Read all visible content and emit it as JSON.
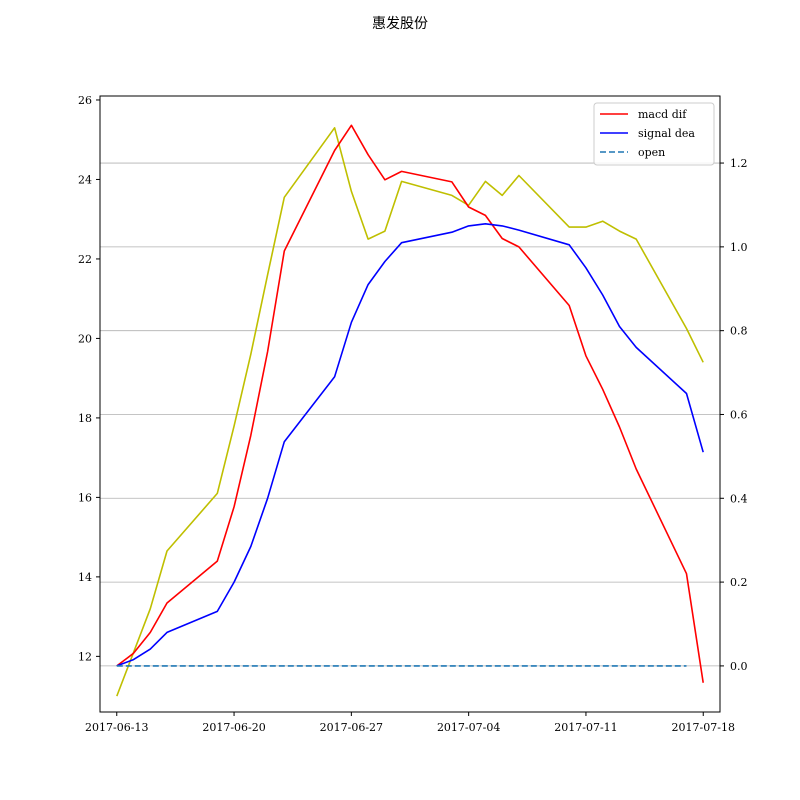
{
  "chart_data": {
    "type": "line",
    "title": "惠发股份",
    "x_ticks": [
      "2017-06-13",
      "2017-06-20",
      "2017-06-27",
      "2017-07-04",
      "2017-07-11",
      "2017-07-18"
    ],
    "x_range": [
      "2017-06-12",
      "2017-07-19"
    ],
    "left_y_range": [
      10.6,
      26.1
    ],
    "left_y_ticks": [
      "12",
      "14",
      "16",
      "18",
      "20",
      "22",
      "24",
      "26"
    ],
    "right_y_range": [
      -0.11,
      1.36
    ],
    "right_y_ticks": [
      "0.0",
      "0.2",
      "0.4",
      "0.6",
      "0.8",
      "1.0",
      "1.2"
    ],
    "grid": "horizontal gridlines on right axis",
    "legend_position": "upper-right",
    "price_series": {
      "axis": "left",
      "color": "#bfbf00",
      "points": [
        [
          "2017-06-13",
          11.0
        ],
        [
          "2017-06-15",
          13.2
        ],
        [
          "2017-06-16",
          14.65
        ],
        [
          "2017-06-19",
          16.1
        ],
        [
          "2017-06-20",
          17.8
        ],
        [
          "2017-06-21",
          19.6
        ],
        [
          "2017-06-22",
          21.6
        ],
        [
          "2017-06-23",
          23.55
        ],
        [
          "2017-06-26",
          25.3
        ],
        [
          "2017-06-27",
          23.7
        ],
        [
          "2017-06-28",
          22.5
        ],
        [
          "2017-06-29",
          22.7
        ],
        [
          "2017-06-30",
          23.95
        ],
        [
          "2017-07-03",
          23.6
        ],
        [
          "2017-07-04",
          23.35
        ],
        [
          "2017-07-05",
          23.95
        ],
        [
          "2017-07-06",
          23.6
        ],
        [
          "2017-07-07",
          24.1
        ],
        [
          "2017-07-10",
          22.8
        ],
        [
          "2017-07-11",
          22.8
        ],
        [
          "2017-07-12",
          22.95
        ],
        [
          "2017-07-13",
          22.7
        ],
        [
          "2017-07-14",
          22.5
        ],
        [
          "2017-07-17",
          20.25
        ],
        [
          "2017-07-18",
          19.4
        ]
      ]
    },
    "series": [
      {
        "name": "macd dif",
        "axis": "right",
        "color": "#ff0000",
        "dash": "solid",
        "points": [
          [
            "2017-06-13",
            0.0
          ],
          [
            "2017-06-14",
            0.03
          ],
          [
            "2017-06-15",
            0.08
          ],
          [
            "2017-06-16",
            0.15
          ],
          [
            "2017-06-19",
            0.25
          ],
          [
            "2017-06-20",
            0.38
          ],
          [
            "2017-06-21",
            0.55
          ],
          [
            "2017-06-22",
            0.75
          ],
          [
            "2017-06-23",
            0.99
          ],
          [
            "2017-06-26",
            1.23
          ],
          [
            "2017-06-27",
            1.29
          ],
          [
            "2017-06-28",
            1.22
          ],
          [
            "2017-06-29",
            1.16
          ],
          [
            "2017-06-30",
            1.18
          ],
          [
            "2017-07-03",
            1.155
          ],
          [
            "2017-07-04",
            1.095
          ],
          [
            "2017-07-05",
            1.075
          ],
          [
            "2017-07-06",
            1.02
          ],
          [
            "2017-07-07",
            1.0
          ],
          [
            "2017-07-10",
            0.86
          ],
          [
            "2017-07-11",
            0.74
          ],
          [
            "2017-07-12",
            0.66
          ],
          [
            "2017-07-13",
            0.57
          ],
          [
            "2017-07-14",
            0.47
          ],
          [
            "2017-07-17",
            0.22
          ],
          [
            "2017-07-18",
            -0.04
          ]
        ]
      },
      {
        "name": "signal dea",
        "axis": "right",
        "color": "#0000ff",
        "dash": "solid",
        "points": [
          [
            "2017-06-13",
            0.0
          ],
          [
            "2017-06-14",
            0.015
          ],
          [
            "2017-06-15",
            0.04
          ],
          [
            "2017-06-16",
            0.08
          ],
          [
            "2017-06-19",
            0.13
          ],
          [
            "2017-06-20",
            0.2
          ],
          [
            "2017-06-21",
            0.285
          ],
          [
            "2017-06-22",
            0.4
          ],
          [
            "2017-06-23",
            0.535
          ],
          [
            "2017-06-26",
            0.69
          ],
          [
            "2017-06-27",
            0.82
          ],
          [
            "2017-06-28",
            0.91
          ],
          [
            "2017-06-29",
            0.965
          ],
          [
            "2017-06-30",
            1.01
          ],
          [
            "2017-07-03",
            1.035
          ],
          [
            "2017-07-04",
            1.05
          ],
          [
            "2017-07-05",
            1.055
          ],
          [
            "2017-07-06",
            1.05
          ],
          [
            "2017-07-07",
            1.04
          ],
          [
            "2017-07-10",
            1.005
          ],
          [
            "2017-07-11",
            0.95
          ],
          [
            "2017-07-12",
            0.885
          ],
          [
            "2017-07-13",
            0.81
          ],
          [
            "2017-07-14",
            0.76
          ],
          [
            "2017-07-17",
            0.65
          ],
          [
            "2017-07-18",
            0.51
          ]
        ]
      },
      {
        "name": "open",
        "axis": "right",
        "color": "#1f77b4",
        "dash": "dashed",
        "points": [
          [
            "2017-06-13",
            0.0
          ],
          [
            "2017-07-17",
            0.0
          ]
        ]
      }
    ]
  }
}
